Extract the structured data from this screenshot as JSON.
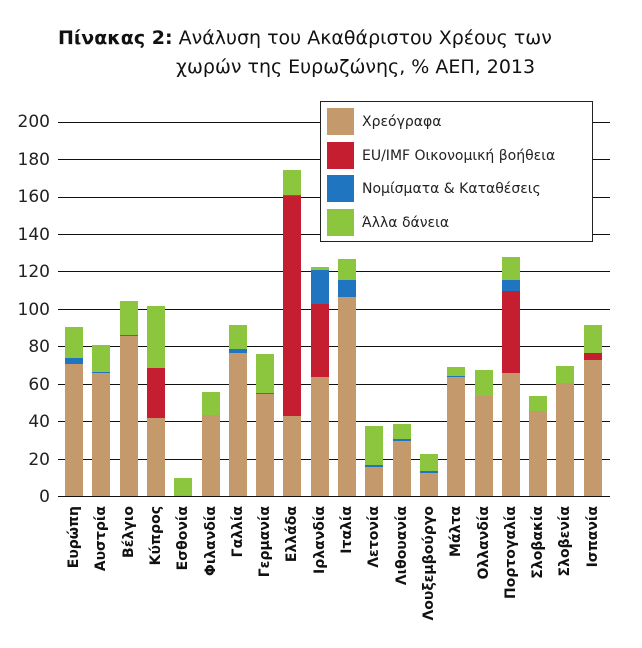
{
  "title": {
    "label": "Πίνακας 2:",
    "line1": "Ανάλυση του Ακαθάριστου Χρέους των",
    "line2": "χωρών της Ευρωζώνης, % ΑΕΠ, 2013"
  },
  "legend": {
    "items": [
      {
        "label": "Χρεόγραφα",
        "color": "#c49a6c"
      },
      {
        "label": "EU/IMF Οικονομική βοήθεια",
        "color": "#c41e30"
      },
      {
        "label": "Νομίσματα & Καταθέσεις",
        "color": "#1f75c0"
      },
      {
        "label": "Άλλα δάνεια",
        "color": "#8cc63f"
      }
    ]
  },
  "chart_data": {
    "type": "bar",
    "stacked": true,
    "title": "Πίνακας 2: Ανάλυση του Ακαθάριστου Χρέους των χωρών της Ευρωζώνης, % ΑΕΠ, 2013",
    "xlabel": "",
    "ylabel": "",
    "ylim": [
      0,
      200
    ],
    "yticks": [
      0,
      20,
      40,
      60,
      80,
      100,
      120,
      140,
      160,
      180,
      200
    ],
    "grid": true,
    "legend_position": "top-right",
    "categories": [
      "Ευρώπη",
      "Αυστρία",
      "Βέλγιο",
      "Κύπρος",
      "Εσθονία",
      "Φιλανδία",
      "Γαλλία",
      "Γερμανία",
      "Ελλάδα",
      "Ιρλανδία",
      "Ιταλία",
      "Λετονία",
      "Λιθουανία",
      "Λουξεμβούργο",
      "Μάλτα",
      "Ολλανδία",
      "Πορτογαλία",
      "Σλοβακία",
      "Σλοβενία",
      "Ισπανία"
    ],
    "series": [
      {
        "name": "Χρεόγραφα",
        "color": "#c49a6c",
        "values": [
          71,
          66,
          86,
          42,
          1,
          44,
          77,
          55,
          43,
          64,
          107,
          16,
          30,
          13,
          64,
          54,
          66,
          46,
          61,
          73
        ]
      },
      {
        "name": "EU/IMF Οικονομική βοήθεια",
        "color": "#c41e30",
        "values": [
          0,
          0,
          0,
          27,
          0,
          0,
          0,
          0,
          118,
          39,
          0,
          0,
          0,
          0,
          0,
          0,
          44,
          0,
          0,
          4
        ]
      },
      {
        "name": "Νομίσματα & Καταθέσεις",
        "color": "#1f75c0",
        "values": [
          3,
          1,
          0.5,
          0,
          0,
          0,
          2,
          0.5,
          0.5,
          18,
          9,
          1,
          1,
          1,
          0.5,
          0,
          6,
          0,
          0,
          0
        ]
      },
      {
        "name": "Άλλα δάνεια",
        "color": "#8cc63f",
        "values": [
          17,
          14,
          18,
          33,
          9,
          12,
          13,
          21,
          13,
          2,
          11,
          21,
          8,
          9,
          5,
          14,
          12,
          8,
          9,
          15
        ]
      }
    ]
  }
}
